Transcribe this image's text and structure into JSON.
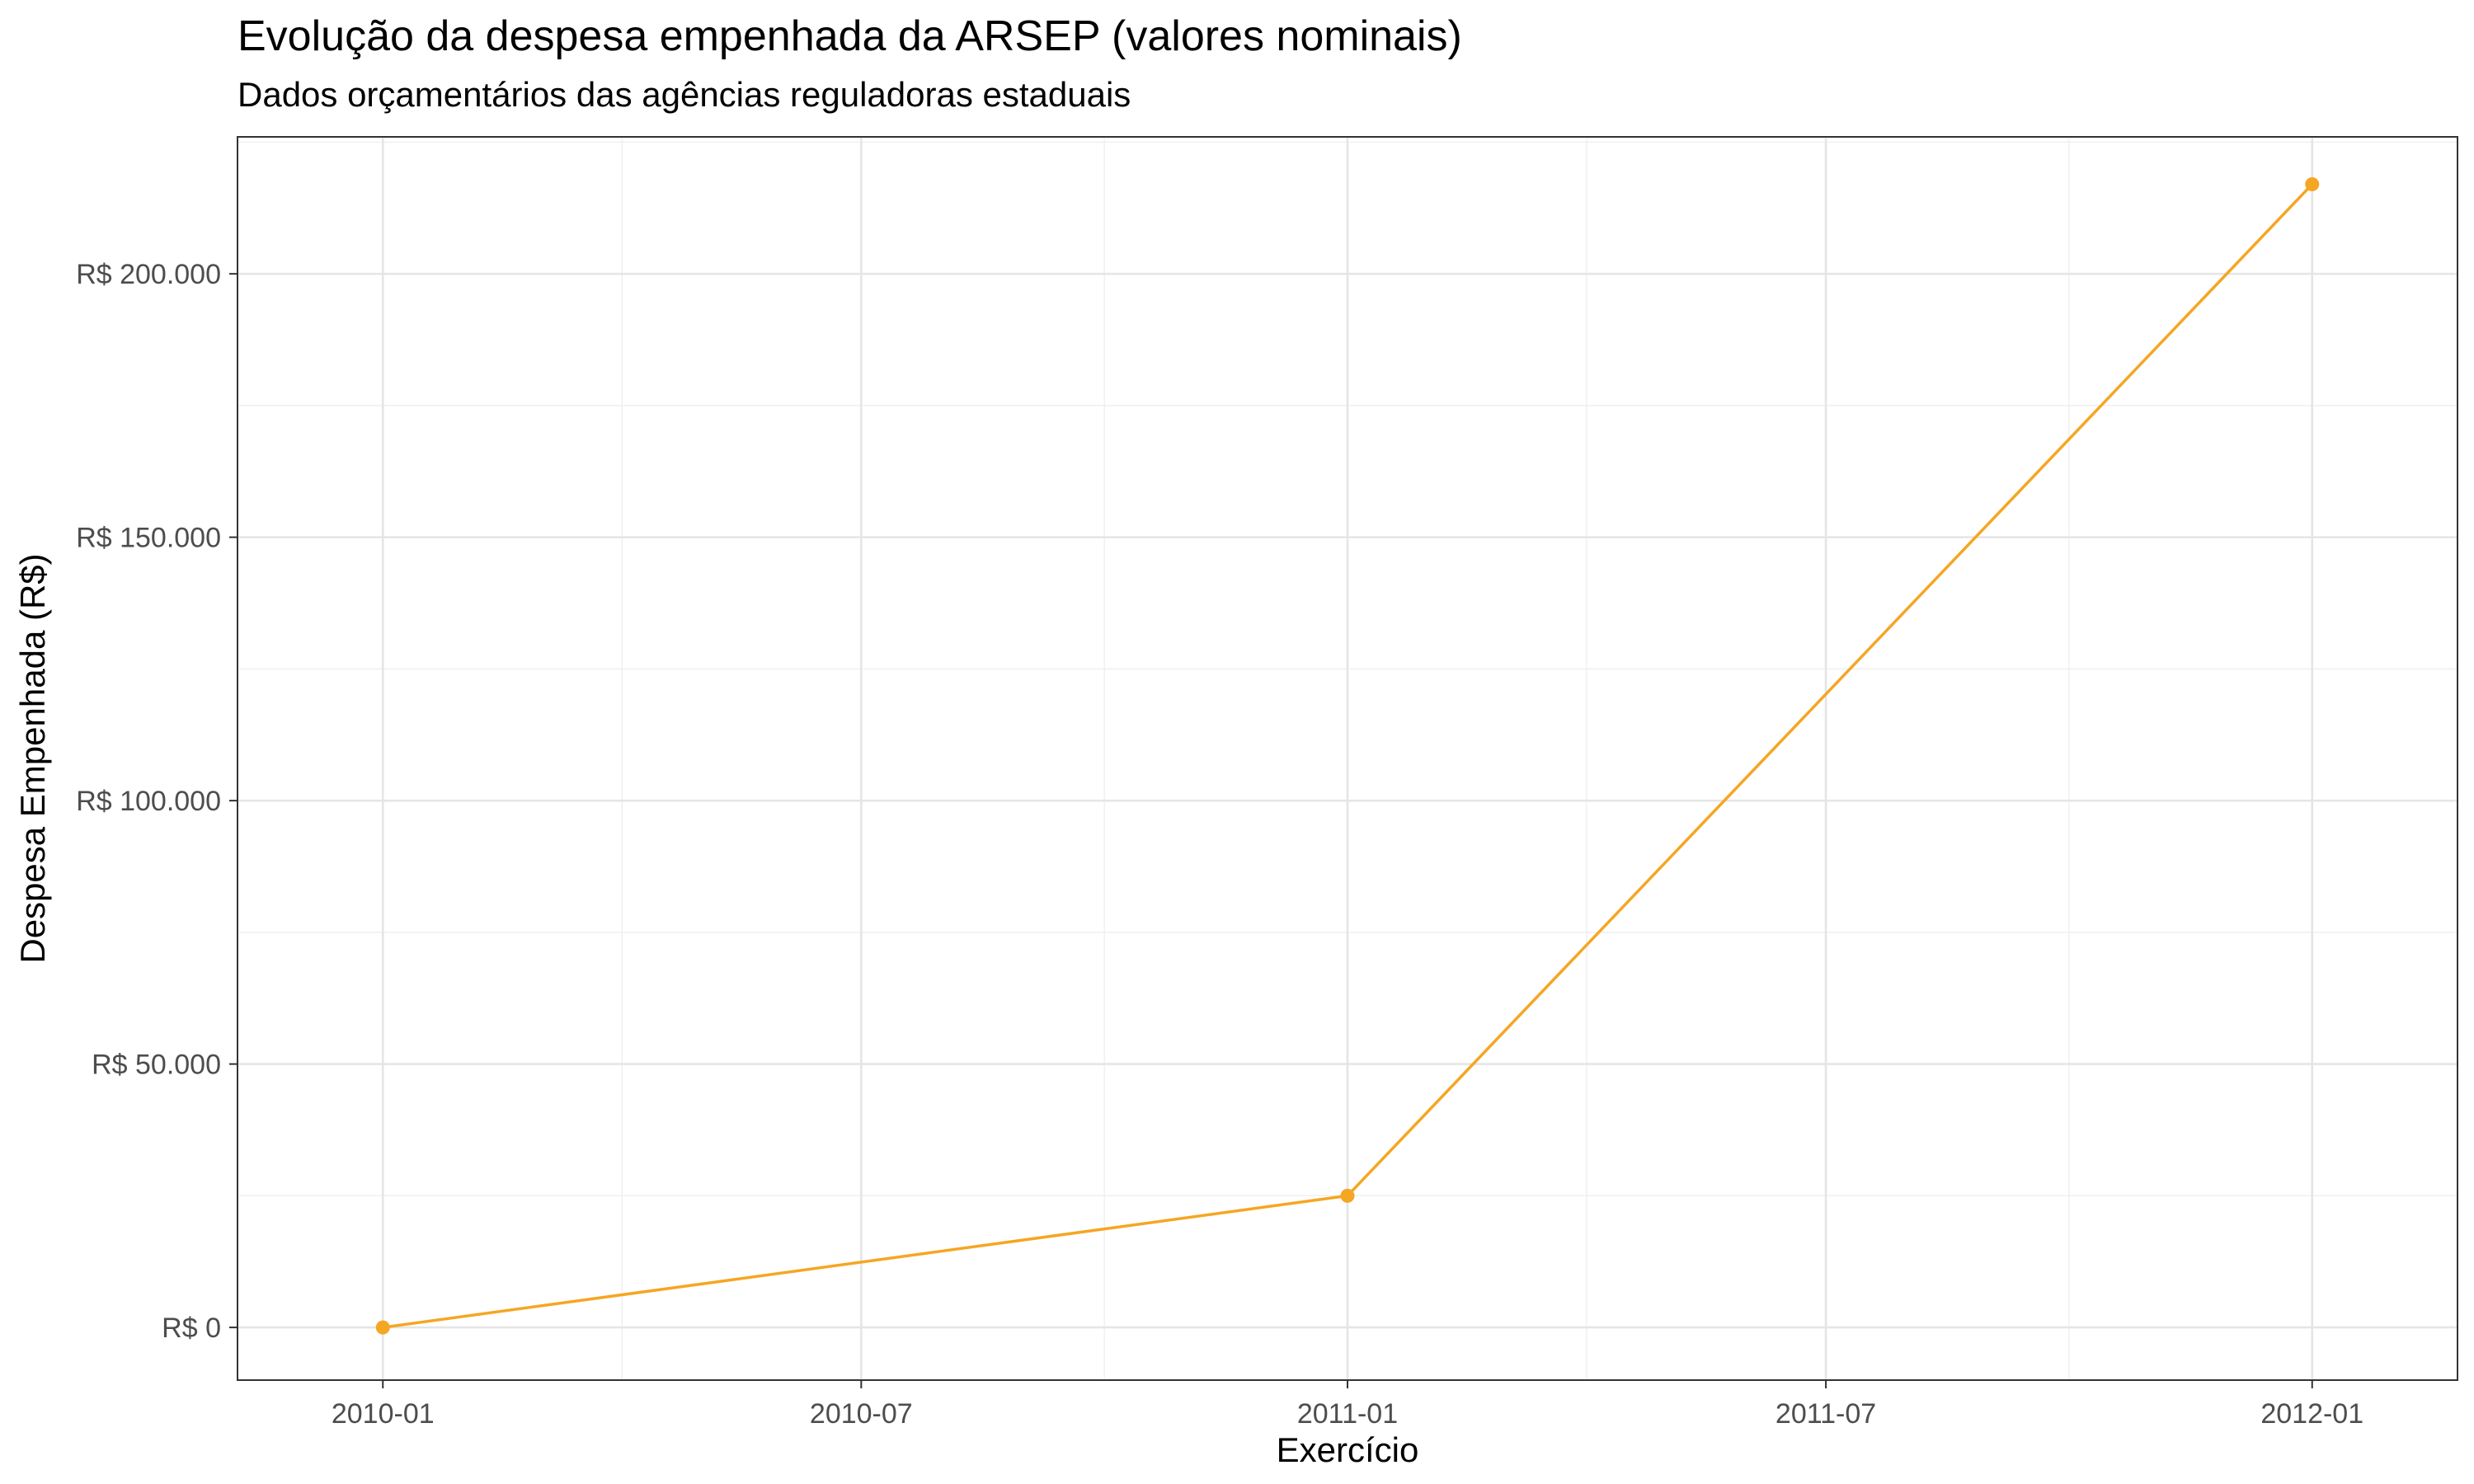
{
  "chart_data": {
    "type": "line",
    "title": "Evolução da despesa empenhada da ARSEP (valores nominais)",
    "subtitle": "Dados orçamentários das agências reguladoras estaduais",
    "xlabel": "Exercício",
    "ylabel": "Despesa Empenhada (R$)",
    "x_ticks": [
      "2010-01",
      "2010-07",
      "2011-01",
      "2011-07",
      "2012-01"
    ],
    "y_ticks": [
      {
        "value": 0,
        "label": "R$ 0"
      },
      {
        "value": 50000,
        "label": "R$ 50.000"
      },
      {
        "value": 100000,
        "label": "R$ 100.000"
      },
      {
        "value": 150000,
        "label": "R$ 150.000"
      },
      {
        "value": 200000,
        "label": "R$ 200.000"
      }
    ],
    "xlim": [
      "2009-11-07",
      "2012-02-25"
    ],
    "ylim": [
      -10000,
      226000
    ],
    "grid": true,
    "series": [
      {
        "x": [
          "2010-01-01",
          "2011-01-01",
          "2012-01-01"
        ],
        "y": [
          0,
          25000,
          217000
        ],
        "color": "#F5A623"
      }
    ]
  }
}
